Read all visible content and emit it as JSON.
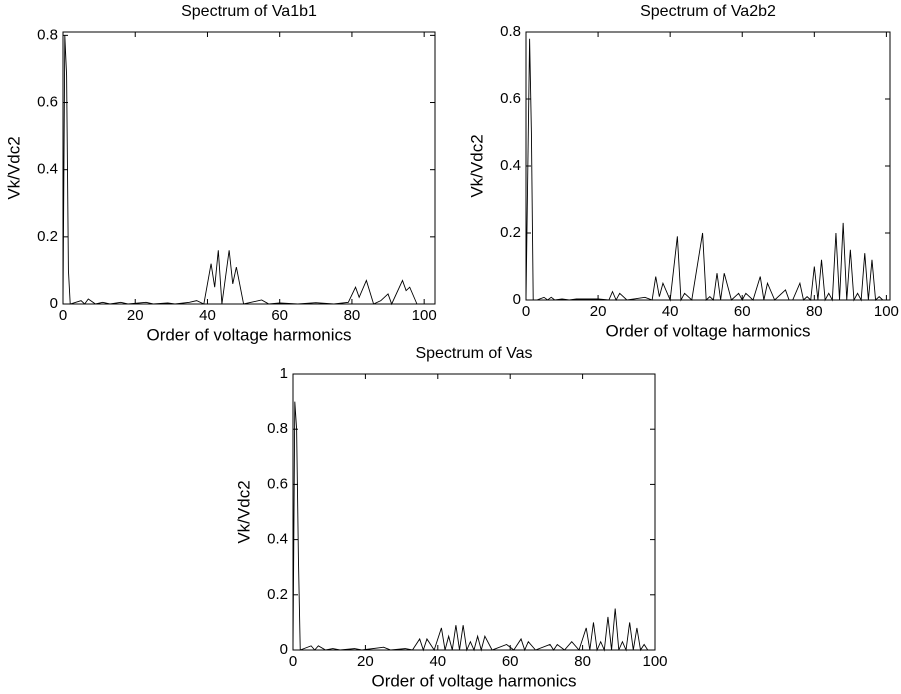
{
  "chart_data": [
    {
      "type": "line",
      "title": "Spectrum of Va1b1",
      "x_label": "Order of voltage harmonics",
      "y_label": "Vk/Vdc2",
      "color": "#000000",
      "x": [
        0,
        0.5,
        1,
        1.5,
        2,
        5,
        6,
        7,
        9,
        11,
        13,
        16,
        18,
        23,
        25,
        29,
        31,
        35,
        37,
        39,
        41,
        42,
        43,
        44,
        46,
        47,
        48,
        50,
        55,
        57,
        60,
        65,
        70,
        75,
        79,
        81,
        82,
        84,
        86,
        88,
        90,
        91,
        94,
        95,
        96,
        98
      ],
      "values": [
        0,
        0.8,
        0.68,
        0.1,
        0,
        0.01,
        0,
        0.015,
        0,
        0.005,
        0,
        0.005,
        0,
        0.005,
        0,
        0.003,
        0,
        0.005,
        0.01,
        0,
        0.12,
        0.05,
        0.16,
        0,
        0.16,
        0.06,
        0.11,
        0,
        0.012,
        0,
        0.003,
        0,
        0.004,
        0,
        0.005,
        0.05,
        0.02,
        0.07,
        0,
        0.01,
        0.03,
        0,
        0.07,
        0.04,
        0.05,
        0
      ],
      "xlim": [
        0,
        103
      ],
      "ylim": [
        0,
        0.81
      ],
      "xticks": [
        0,
        20,
        40,
        60,
        80,
        100
      ],
      "yticks": [
        0,
        0.2,
        0.4,
        0.6,
        0.8
      ]
    },
    {
      "type": "line",
      "title": "Spectrum of Va2b2",
      "x_label": "Order of voltage harmonics",
      "y_label": "Vk/Vdc2",
      "color": "#000000",
      "x": [
        0,
        1,
        1.5,
        2,
        3,
        5,
        6,
        7,
        8,
        10,
        12,
        14,
        20,
        23,
        24,
        25,
        26,
        28,
        33,
        35,
        36,
        37,
        38,
        40,
        42,
        43,
        44,
        46,
        49,
        50,
        51,
        52,
        53,
        54,
        55,
        57,
        59,
        60,
        61,
        63,
        65,
        66,
        67,
        69,
        72,
        73,
        74,
        76,
        77,
        78,
        79,
        80,
        81,
        82,
        83,
        84,
        85,
        86,
        87,
        88,
        89,
        90,
        91,
        92,
        93,
        94,
        95,
        96,
        97,
        98,
        99
      ],
      "values": [
        0,
        0.78,
        0.5,
        0,
        0,
        0.008,
        0,
        0.008,
        0,
        0.003,
        0,
        0.003,
        0.003,
        0,
        0.025,
        0,
        0.02,
        0,
        0.008,
        0,
        0.07,
        0.01,
        0.05,
        0,
        0.19,
        0,
        0.02,
        0,
        0.2,
        0,
        0.01,
        0,
        0.08,
        0,
        0.08,
        0,
        0.02,
        0,
        0.02,
        0,
        0.07,
        0,
        0.05,
        0,
        0.03,
        0,
        0,
        0.05,
        0,
        0.01,
        0,
        0.1,
        0,
        0.12,
        0,
        0.02,
        0,
        0.2,
        0,
        0.23,
        0,
        0.15,
        0,
        0.02,
        0,
        0.14,
        0,
        0.12,
        0,
        0.01,
        0
      ],
      "xlim": [
        0,
        101
      ],
      "ylim": [
        0,
        0.8
      ],
      "xticks": [
        0,
        20,
        40,
        60,
        80,
        100
      ],
      "yticks": [
        0,
        0.2,
        0.4,
        0.6,
        0.8
      ]
    },
    {
      "type": "line",
      "title": "Spectrum of Vas",
      "x_label": "Order of voltage harmonics",
      "y_label": "Vk/Vdc2",
      "color": "#000000",
      "x": [
        0,
        0.5,
        1,
        1.5,
        2,
        5,
        6,
        7,
        9,
        11,
        13,
        17,
        19,
        25,
        27,
        31,
        33,
        35,
        36,
        37,
        39,
        41,
        42,
        43,
        44,
        45,
        46,
        47,
        48,
        49,
        50,
        51,
        52,
        53,
        55,
        59,
        61,
        63,
        64,
        65,
        67,
        71,
        72,
        73,
        75,
        77,
        79,
        81,
        82,
        83,
        84,
        85,
        86,
        87,
        88,
        89,
        90,
        91,
        92,
        93,
        94,
        95,
        96,
        97,
        98
      ],
      "values": [
        0,
        0.9,
        0.8,
        0.33,
        0,
        0.015,
        0,
        0.015,
        0,
        0.005,
        0,
        0.005,
        0,
        0.01,
        0,
        0.005,
        0,
        0.04,
        0,
        0.04,
        0,
        0.08,
        0,
        0.05,
        0,
        0.09,
        0,
        0.09,
        0,
        0.03,
        0,
        0.05,
        0,
        0.05,
        0,
        0.02,
        0,
        0.04,
        0,
        0.03,
        0,
        0.02,
        0,
        0.02,
        0,
        0.03,
        0,
        0.08,
        0,
        0.1,
        0,
        0.03,
        0,
        0.12,
        0,
        0.15,
        0,
        0.03,
        0,
        0.1,
        0,
        0.08,
        0,
        0.02,
        0
      ],
      "xlim": [
        0,
        100
      ],
      "ylim": [
        0,
        1
      ],
      "xticks": [
        0,
        20,
        40,
        60,
        80,
        100
      ],
      "yticks": [
        0,
        0.2,
        0.4,
        0.6,
        0.8,
        1
      ]
    }
  ]
}
